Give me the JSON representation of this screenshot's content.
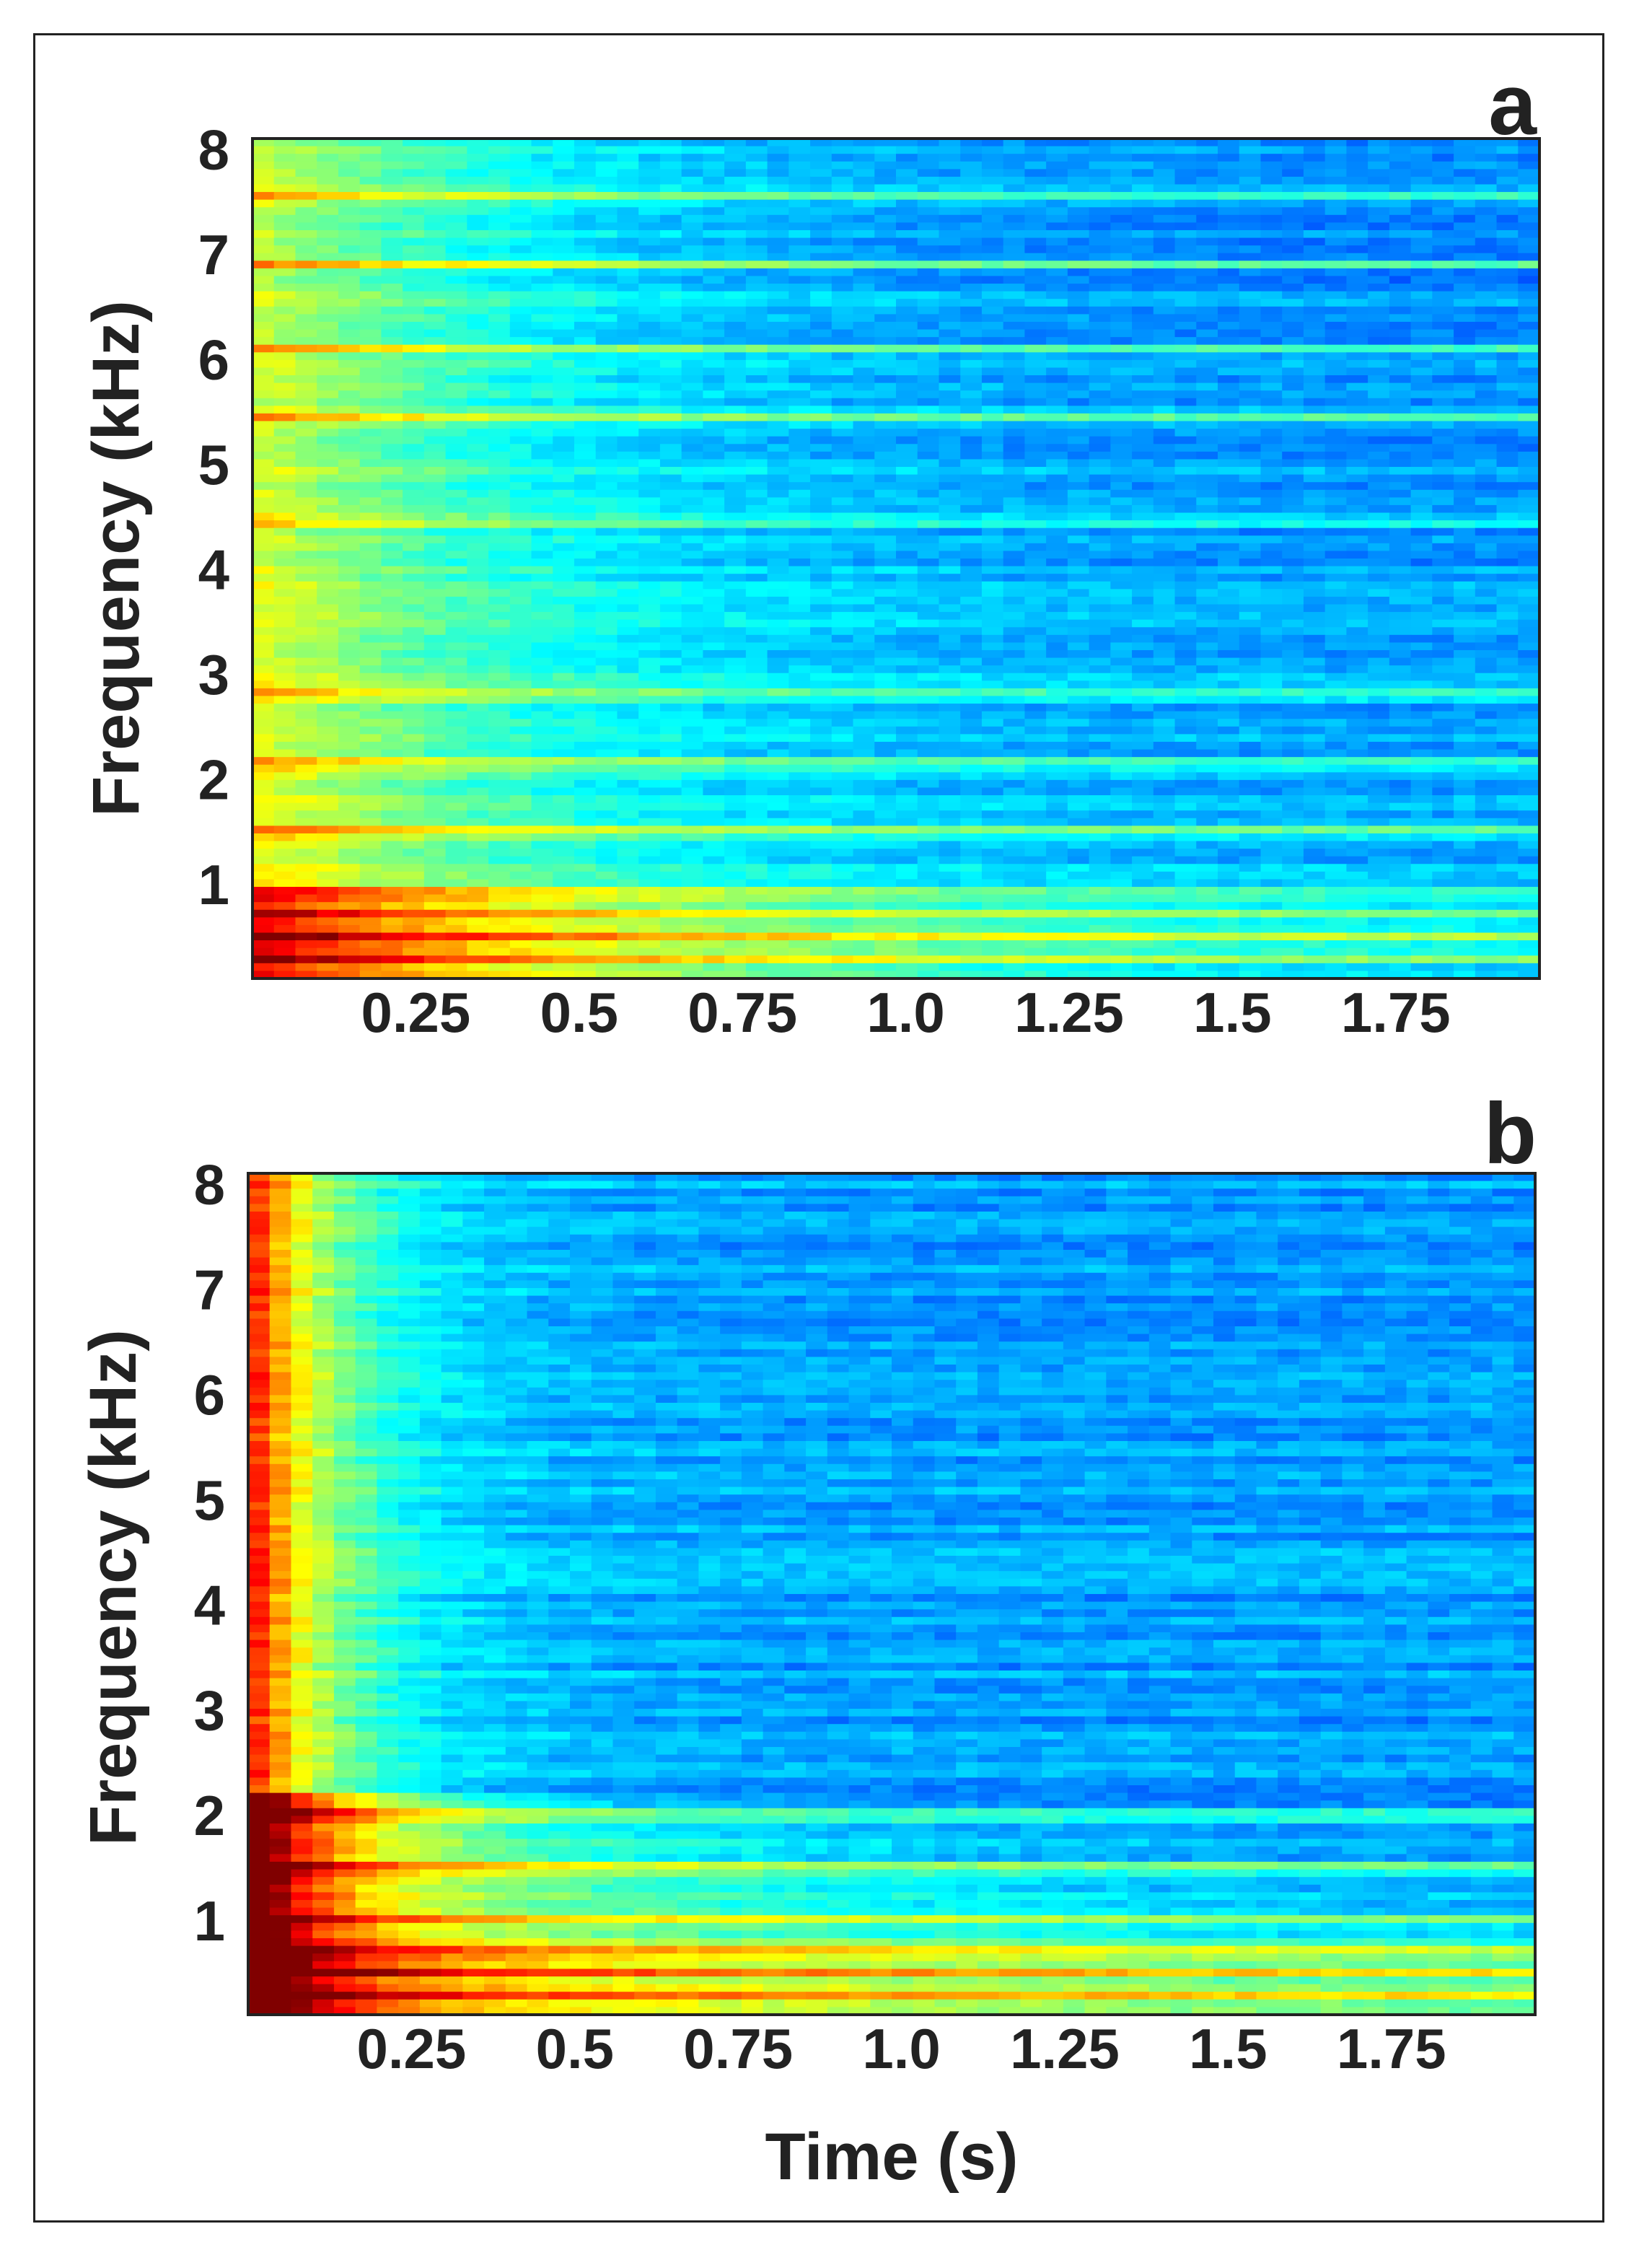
{
  "chart_data": [
    {
      "type": "heatmap",
      "panel_label": "a",
      "ylabel": "Frequency (kHz)",
      "xlabel": "",
      "x_ticks": [
        "0.25",
        "0.5",
        "0.75",
        "1.0",
        "1.25",
        "1.5",
        "1.75"
      ],
      "x_tick_values": [
        0.25,
        0.5,
        0.75,
        1.0,
        1.25,
        1.5,
        1.75
      ],
      "y_ticks": [
        "1",
        "2",
        "3",
        "4",
        "5",
        "6",
        "7",
        "8"
      ],
      "y_tick_values": [
        1,
        2,
        3,
        4,
        5,
        6,
        7,
        8
      ],
      "xlim": [
        0,
        1.97
      ],
      "ylim": [
        0.1,
        8.1
      ],
      "colormap": "jet",
      "description_values": {
        "strong_bands_kHz": [
          0.3,
          0.5,
          0.72,
          0.9,
          1.5,
          2.15,
          2.8,
          4.45,
          5.45,
          6.1,
          6.9,
          7.55
        ],
        "decay_time_s": 0.45
      }
    },
    {
      "type": "heatmap",
      "panel_label": "b",
      "ylabel": "Frequency (kHz)",
      "xlabel": "Time (s)",
      "x_ticks": [
        "0.25",
        "0.5",
        "0.75",
        "1.0",
        "1.25",
        "1.5",
        "1.75"
      ],
      "x_tick_values": [
        0.25,
        0.5,
        0.75,
        1.0,
        1.25,
        1.5,
        1.75
      ],
      "y_ticks": [
        "1",
        "2",
        "3",
        "4",
        "5",
        "6",
        "7",
        "8"
      ],
      "y_tick_values": [
        1,
        2,
        3,
        4,
        5,
        6,
        7,
        8
      ],
      "xlim": [
        0,
        1.97
      ],
      "ylim": [
        0.1,
        8.1
      ],
      "colormap": "jet",
      "description_values": {
        "strong_bands_kHz": [
          0.3,
          0.5,
          0.7,
          1.0,
          1.5,
          2.0
        ],
        "decay_time_s": 0.12
      }
    }
  ]
}
